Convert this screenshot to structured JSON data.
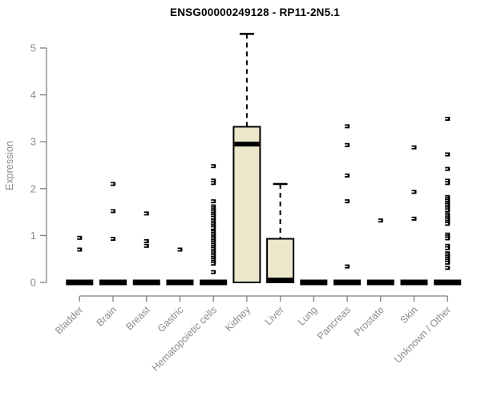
{
  "window": {
    "title": "ENSG00000249128 - RP11-2N5.1"
  },
  "colors": {
    "background": "#ffffff",
    "box_fill": "#EDE7CC",
    "box_border": "#000000",
    "median": "#000000",
    "flat_bar": "#000000",
    "point": "#000000",
    "point_slit": "#ffffff",
    "axis_line": "#7f7f7f",
    "tick_label": "#8c8c8c",
    "title_text": "#000000"
  },
  "chart_data": {
    "type": "boxplot",
    "title": "ENSG00000249128 - RP11-2N5.1",
    "xlabel": "",
    "ylabel": "Expression",
    "ylim": [
      0,
      5.4
    ],
    "yticks": [
      0,
      1,
      2,
      3,
      4,
      5
    ],
    "grid": false,
    "legend": "none",
    "categories": [
      "Bladder",
      "Brain",
      "Breast",
      "Gastric",
      "Hematopoietic cells",
      "Kidney",
      "Liver",
      "Lung",
      "Pancreas",
      "Prostate",
      "Skin",
      "Unknown / Other"
    ],
    "groups": [
      {
        "label": "Bladder",
        "box": {
          "low": 0,
          "q1": 0,
          "median": 0,
          "q3": 0,
          "high": 0
        },
        "points": [
          0.95,
          0.7
        ]
      },
      {
        "label": "Brain",
        "box": {
          "low": 0,
          "q1": 0,
          "median": 0,
          "q3": 0,
          "high": 0
        },
        "points": [
          2.1,
          1.52,
          0.93
        ]
      },
      {
        "label": "Breast",
        "box": {
          "low": 0,
          "q1": 0,
          "median": 0,
          "q3": 0,
          "high": 0
        },
        "points": [
          1.47,
          0.88,
          0.78
        ]
      },
      {
        "label": "Gastric",
        "box": {
          "low": 0,
          "q1": 0,
          "median": 0,
          "q3": 0,
          "high": 0
        },
        "points": [
          0.7
        ]
      },
      {
        "label": "Hematopoietic cells",
        "box": {
          "low": 0,
          "q1": 0,
          "median": 0,
          "q3": 0,
          "high": 0
        },
        "points": [
          2.48,
          2.17,
          2.12,
          1.73,
          1.62,
          1.58,
          1.54,
          1.5,
          1.46,
          1.42,
          1.38,
          1.32,
          1.28,
          1.24,
          1.2,
          1.16,
          1.08,
          1.04,
          1.0,
          0.96,
          0.92,
          0.88,
          0.84,
          0.8,
          0.76,
          0.72,
          0.68,
          0.64,
          0.6,
          0.56,
          0.52,
          0.48,
          0.44,
          0.4,
          0.22
        ]
      },
      {
        "label": "Kidney",
        "box": {
          "low": 0,
          "q1": 0,
          "median": 2.95,
          "q3": 3.32,
          "high": 5.3
        },
        "points": []
      },
      {
        "label": "Liver",
        "box": {
          "low": 0,
          "q1": 0,
          "median": 0.02,
          "q3": 0.93,
          "high": 2.1
        },
        "points": []
      },
      {
        "label": "Lung",
        "box": {
          "low": 0,
          "q1": 0,
          "median": 0,
          "q3": 0,
          "high": 0
        },
        "points": []
      },
      {
        "label": "Pancreas",
        "box": {
          "low": 0,
          "q1": 0,
          "median": 0,
          "q3": 0,
          "high": 0
        },
        "points": [
          3.33,
          2.93,
          2.28,
          1.73,
          0.34
        ]
      },
      {
        "label": "Prostate",
        "box": {
          "low": 0,
          "q1": 0,
          "median": 0,
          "q3": 0,
          "high": 0
        },
        "points": [
          1.32
        ]
      },
      {
        "label": "Skin",
        "box": {
          "low": 0,
          "q1": 0,
          "median": 0,
          "q3": 0,
          "high": 0
        },
        "points": [
          2.88,
          1.93,
          1.36
        ]
      },
      {
        "label": "Unknown / Other",
        "box": {
          "low": 0,
          "q1": 0,
          "median": 0,
          "q3": 0,
          "high": 0
        },
        "points": [
          3.49,
          2.73,
          2.42,
          2.17,
          2.12,
          1.82,
          1.78,
          1.74,
          1.7,
          1.66,
          1.62,
          1.58,
          1.54,
          1.45,
          1.41,
          1.37,
          1.33,
          1.29,
          1.25,
          1.02,
          0.98,
          0.94,
          0.78,
          0.73,
          0.62,
          0.58,
          0.54,
          0.5,
          0.46,
          0.42,
          0.31
        ]
      }
    ]
  }
}
